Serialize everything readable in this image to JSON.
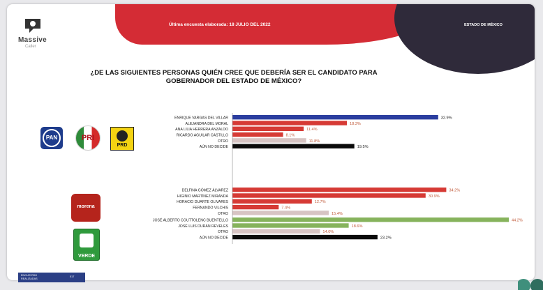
{
  "header": {
    "date_text": "Última encuesta elaborada: 18 JULIO DEL 2022",
    "state_text": "ESTADO DE MÉXICO"
  },
  "brand": {
    "name": "Massive",
    "sub": "Caller"
  },
  "parties": {
    "pan": "PAN",
    "pri": "PRI",
    "prd": "PRD",
    "morena": "morena",
    "verde": "VERDE"
  },
  "footer": {
    "line1": "ENCUESTAS",
    "line2": "REALIZADAS",
    "count": "517"
  },
  "colors": {
    "pan_blue": "#2b3e9f",
    "red": "#d63a35",
    "gray": "#d7c4c3",
    "black": "#0a0a0a",
    "green": "#86b35c",
    "header_red": "#d42c35",
    "header_dark": "#2f2a3a"
  },
  "chart_data": {
    "type": "bar",
    "orientation": "horizontal",
    "title": "¿DE LAS SIGUIENTES PERSONAS QUIÉN CREE QUE DEBERÍA SER EL CANDIDATO PARA GOBERNADOR  DEL ESTADO DE MÉXICO?",
    "xlim": [
      0,
      44.2
    ],
    "groups": [
      {
        "party": "PAN-PRI-PRD",
        "items": [
          {
            "label": "ENRIQUE VARGAS DEL VILLAR",
            "value": 32.9,
            "text": "32.9%",
            "color": "#2b3e9f"
          },
          {
            "label": "ALEJANDRA DEL MORAL",
            "value": 18.3,
            "text": "18.3%",
            "color": "#d63a35"
          },
          {
            "label": "ANA LILIA HERRERA ANZALDO",
            "value": 11.4,
            "text": "11.4%",
            "color": "#d63a35"
          },
          {
            "label": "RICARDO AGUILAR CASTILLO",
            "value": 8.1,
            "text": "8.1%",
            "color": "#d63a35"
          },
          {
            "label": "OTRO",
            "value": 11.8,
            "text": "11.8%",
            "color": "#d7c4c3"
          },
          {
            "label": "AÚN NO DECIDE",
            "value": 19.5,
            "text": "19.5%",
            "color": "#0a0a0a"
          }
        ]
      },
      {
        "party": "MORENA",
        "items": [
          {
            "label": "DELFINA GÓMEZ ÁLVAREZ",
            "value": 34.2,
            "text": "34.2%",
            "color": "#d63a35"
          },
          {
            "label": "HIGINIO MARTÍNEZ MIRANDA",
            "value": 30.9,
            "text": "30.9%",
            "color": "#d63a35"
          },
          {
            "label": "HORACIO DUARTE OLIVARES",
            "value": 12.7,
            "text": "12.7%",
            "color": "#d63a35"
          },
          {
            "label": "FERNANDO VILCHIS",
            "value": 7.4,
            "text": "7.4%",
            "color": "#d63a35"
          },
          {
            "label": "OTRO",
            "value": 15.4,
            "text": "15.4%",
            "color": "#d7c4c3"
          }
        ]
      },
      {
        "party": "VERDE",
        "items": [
          {
            "label": "JOSÉ ALBERTO COUTTOLENC BUENTELLO",
            "value": 44.2,
            "text": "44.2%",
            "color": "#86b35c"
          },
          {
            "label": "JOSÉ LUIS DURÁN REVELES",
            "value": 18.6,
            "text": "18.6%",
            "color": "#86b35c"
          },
          {
            "label": "OTRO",
            "value": 14.0,
            "text": "14.0%",
            "color": "#d7c4c3"
          },
          {
            "label": "AÚN NO DECIDE",
            "value": 23.2,
            "text": "23.2%",
            "color": "#0a0a0a"
          }
        ]
      }
    ]
  }
}
